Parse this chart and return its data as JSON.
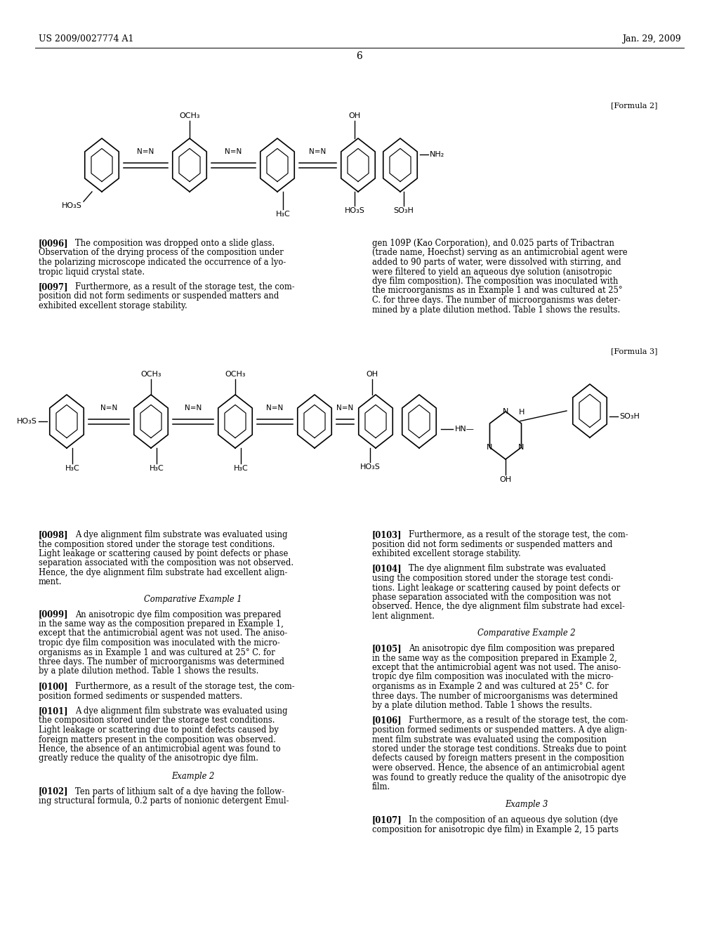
{
  "background_color": "#ffffff",
  "page_header_left": "US 2009/0027774 A1",
  "page_header_right": "Jan. 29, 2009",
  "page_number": "6",
  "formula2_label": "[Formula 2]",
  "formula3_label": "[Formula 3]",
  "fig_width": 10.24,
  "fig_height": 13.2,
  "dpi": 100
}
